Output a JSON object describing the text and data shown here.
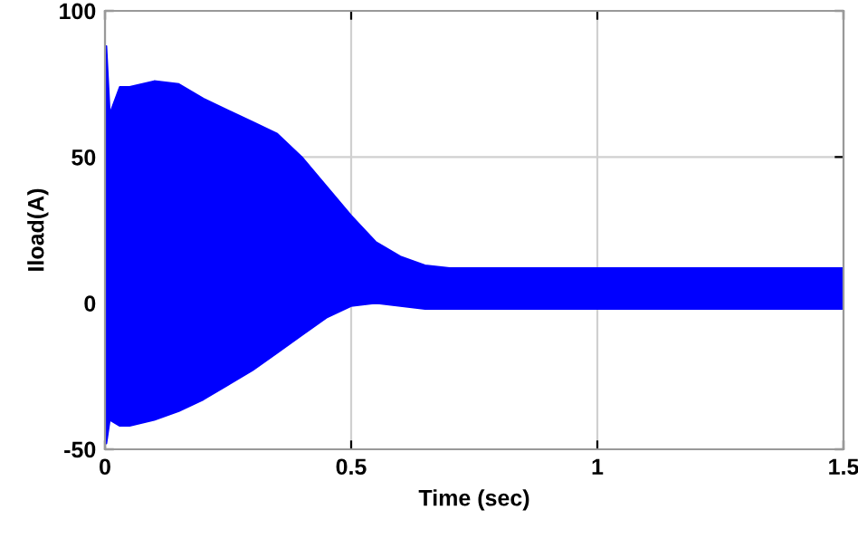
{
  "chart_data": {
    "type": "area",
    "xlabel": "Time (sec)",
    "ylabel": "Iload(A)",
    "xlim": [
      0,
      1.5
    ],
    "ylim": [
      -50,
      100
    ],
    "xticks": [
      0,
      0.5,
      1,
      1.5
    ],
    "yticks": [
      -50,
      0,
      50,
      100
    ],
    "grid": true,
    "x": [
      0,
      0.003,
      0.01,
      0.03,
      0.05,
      0.1,
      0.15,
      0.2,
      0.25,
      0.3,
      0.35,
      0.4,
      0.45,
      0.5,
      0.55,
      0.6,
      0.65,
      0.7,
      0.8,
      1.0,
      1.5
    ],
    "series": [
      {
        "color": "#0000ff",
        "values": [
          88,
          88,
          65,
          74,
          74,
          76,
          75,
          70,
          66,
          62,
          58,
          50,
          40,
          30,
          21,
          16,
          13,
          12,
          12,
          12,
          12
        ]
      },
      {
        "color": "#0000ff",
        "values": [
          -48,
          -48,
          -40,
          -42,
          -42,
          -40,
          -37,
          -33,
          -28,
          -23,
          -17,
          -11,
          -5,
          -1,
          0,
          -1,
          -2,
          -2,
          -2,
          -2,
          -2
        ]
      }
    ]
  }
}
